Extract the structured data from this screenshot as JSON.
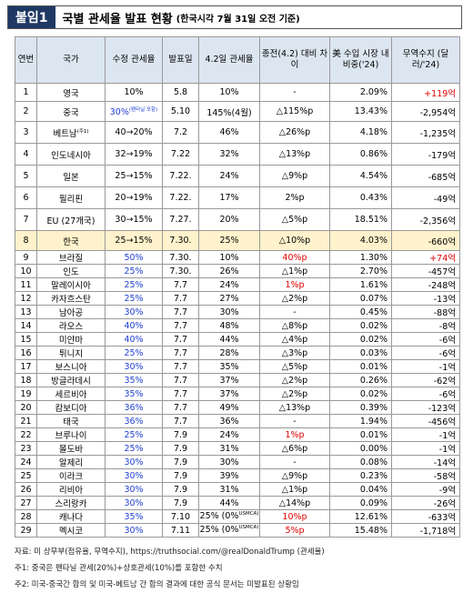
{
  "header": {
    "badge": "붙임1",
    "title": "국별 관세율 발표 현황",
    "subtitle": "(한국시각 7월 31일 오전 기준)"
  },
  "table": {
    "columns": [
      "연번",
      "국가",
      "수정 관세율",
      "발표일",
      "4.2일 관세율",
      "종전(4.2) 대비 차이",
      "美 수입 시장 내 비중('24)",
      "무역수지 (달러/'24)"
    ],
    "rows": [
      [
        "1",
        "영국",
        "10%",
        "5.8",
        "10%",
        "-",
        "2.09%",
        "+119억"
      ],
      [
        "2",
        "중국",
        {
          "text": "30%",
          "sup": "(펜타닐 포함)"
        },
        "5.10",
        "145%(4월)",
        "△115%p",
        "13.43%",
        "-2,954억"
      ],
      [
        "3",
        {
          "text": "베트남",
          "sup": "(주1)"
        },
        "40→20%",
        "7.2",
        "46%",
        "△26%p",
        "4.18%",
        "-1,235억"
      ],
      [
        "4",
        "인도네시아",
        "32→19%",
        "7.22",
        "32%",
        "△13%p",
        "0.86%",
        "-179억"
      ],
      [
        "5",
        "일본",
        "25→15%",
        "7.22.",
        "24%",
        "△9%p",
        "4.54%",
        "-685억"
      ],
      [
        "6",
        "필리핀",
        "20→19%",
        "7.22.",
        "17%",
        "2%p",
        "0.43%",
        "-49억"
      ],
      [
        "7",
        "EU (27개국)",
        "30→15%",
        "7.27.",
        "20%",
        "△5%p",
        "18.51%",
        "-2,356억"
      ],
      [
        "8",
        "한국",
        "25→15%",
        "7.30.",
        "25%",
        "△10%p",
        "4.03%",
        "-660억"
      ],
      [
        "9",
        "브라질",
        "50%",
        "7.30.",
        "10%",
        "40%p",
        "1.30%",
        "+74억"
      ],
      [
        "10",
        "인도",
        "25%",
        "7.30.",
        "26%",
        "△1%p",
        "2.70%",
        "-457억"
      ],
      [
        "11",
        "말레이시아",
        "25%",
        "7.7",
        "24%",
        "1%p",
        "1.61%",
        "-248억"
      ],
      [
        "12",
        "카자흐스탄",
        "25%",
        "7.7",
        "27%",
        "△2%p",
        "0.07%",
        "-13억"
      ],
      [
        "13",
        "남아공",
        "30%",
        "7.7",
        "30%",
        "-",
        "0.45%",
        "-88억"
      ],
      [
        "14",
        "라오스",
        "40%",
        "7.7",
        "48%",
        "△8%p",
        "0.02%",
        "-8억"
      ],
      [
        "15",
        "미얀마",
        "40%",
        "7.7",
        "44%",
        "△4%p",
        "0.02%",
        "-6억"
      ],
      [
        "16",
        "튀니지",
        "25%",
        "7.7",
        "28%",
        "△3%p",
        "0.03%",
        "-6억"
      ],
      [
        "17",
        "보스니아",
        "30%",
        "7.7",
        "35%",
        "△5%p",
        "0.01%",
        "-1억"
      ],
      [
        "18",
        "방글라데시",
        "35%",
        "7.7",
        "37%",
        "△2%p",
        "0.26%",
        "-62억"
      ],
      [
        "19",
        "세르비아",
        "35%",
        "7.7",
        "37%",
        "△2%p",
        "0.02%",
        "-6억"
      ],
      [
        "20",
        "캄보디아",
        "36%",
        "7.7",
        "49%",
        "△13%p",
        "0.39%",
        "-123억"
      ],
      [
        "21",
        "태국",
        "36%",
        "7.7",
        "36%",
        "-",
        "1.94%",
        "-456억"
      ],
      [
        "22",
        "브루나이",
        "25%",
        "7.9",
        "24%",
        "1%p",
        "0.01%",
        "-1억"
      ],
      [
        "23",
        "몰도바",
        "25%",
        "7.9",
        "31%",
        "△6%p",
        "0.00%",
        "-1억"
      ],
      [
        "24",
        "알제리",
        "30%",
        "7.9",
        "30%",
        "-",
        "0.08%",
        "-14억"
      ],
      [
        "25",
        "이라크",
        "30%",
        "7.9",
        "39%",
        "△9%p",
        "0.23%",
        "-58억"
      ],
      [
        "26",
        "리비아",
        "30%",
        "7.9",
        "31%",
        "△1%p",
        "0.04%",
        "-9억"
      ],
      [
        "27",
        "스리랑카",
        "30%",
        "7.9",
        "44%",
        "△14%p",
        "0.09%",
        "-26억"
      ],
      [
        "28",
        "캐나다",
        "35%",
        "7.10",
        {
          "text": "25% (0%",
          "sup": "USMCA)"
        },
        "10%p",
        "12.61%",
        "-633억"
      ],
      [
        "29",
        "멕시코",
        "30%",
        "7.11",
        {
          "text": "25% (0%",
          "sup": "USMCA)"
        },
        "5%p",
        "15.48%",
        "-1,718억"
      ]
    ]
  },
  "notes": [
    "자료: 미 상무부(점유율, 무역수지), https://truthsocial.com/@realDonaldTrump (관세율)",
    "주1: 중국은 펜타닐 관세(20%)+상호관세(10%)를 포함한 수치",
    "주2: 미국-중국간 합의 및 미국-베트남 간 합의 결과에 대한 공식 문서는 미발표된 상황임"
  ]
}
